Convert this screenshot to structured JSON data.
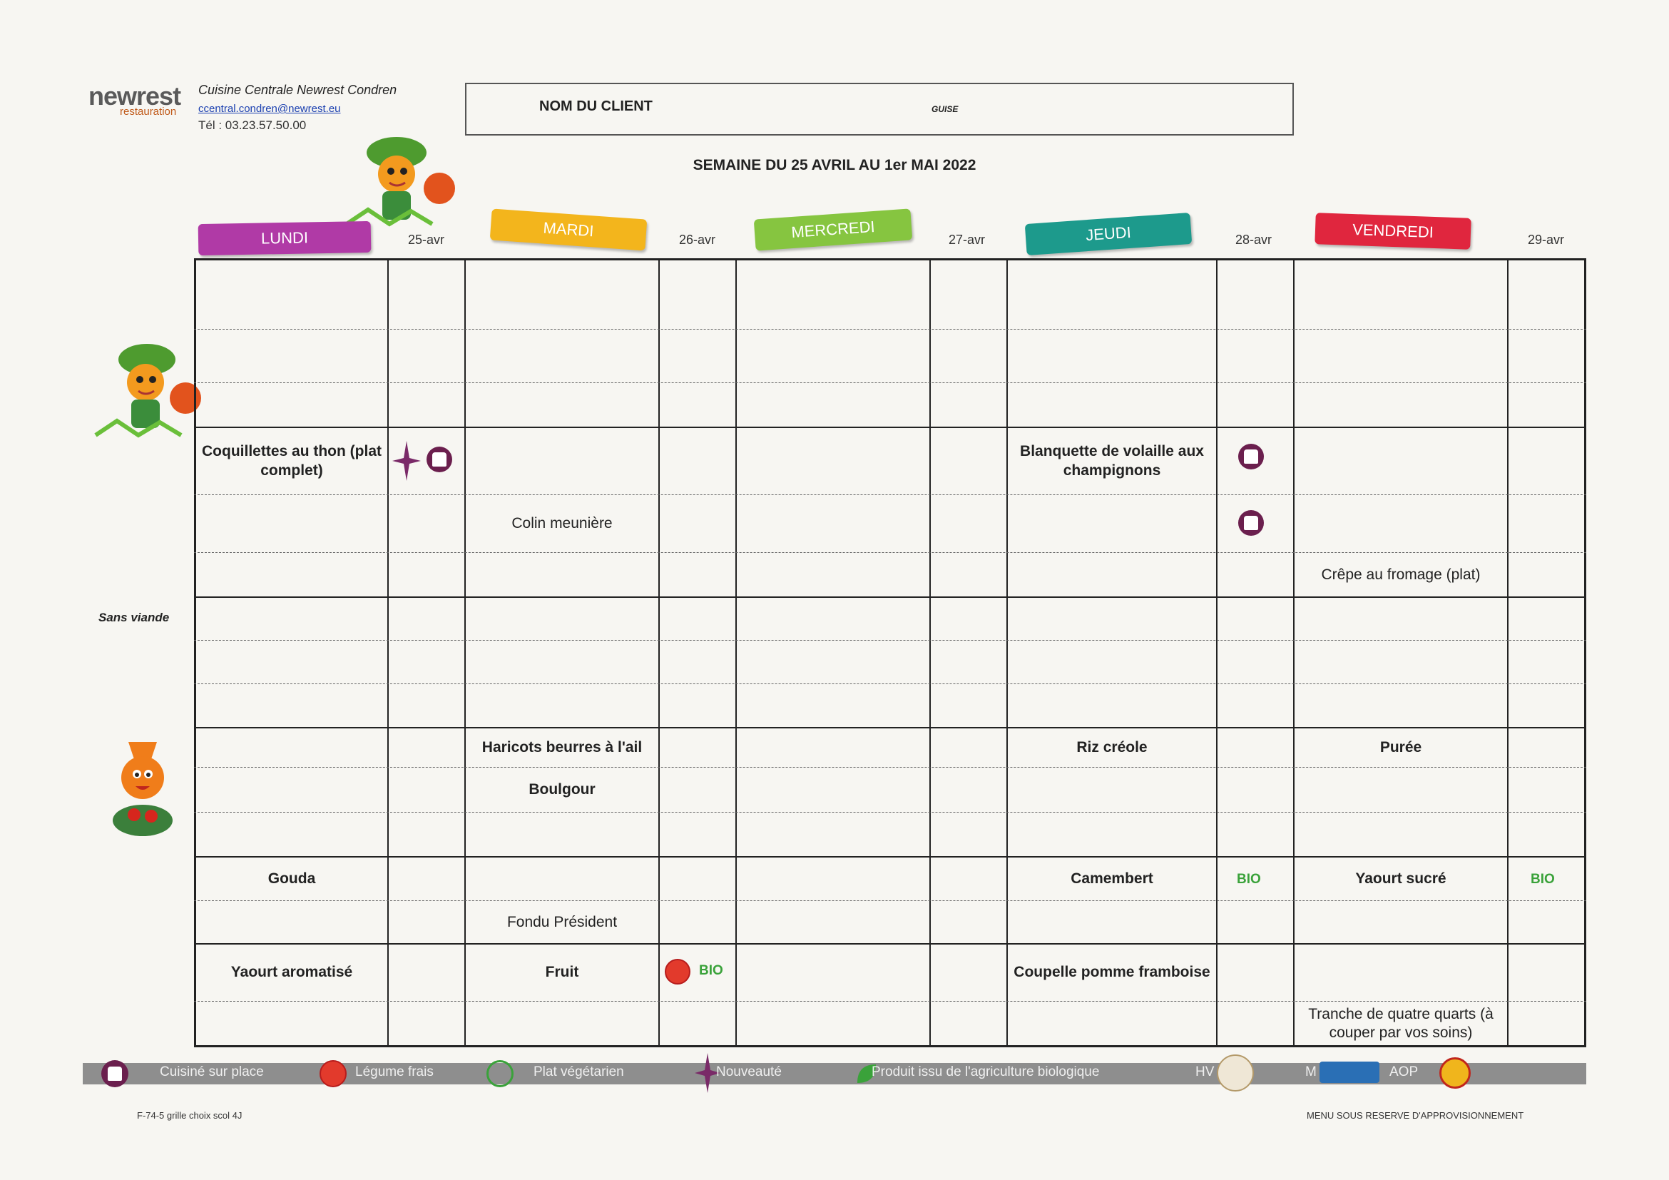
{
  "header": {
    "logo": "newrest",
    "logo_sub": "restauration",
    "company": "Cuisine Centrale Newrest Condren",
    "email": "ccentral.condren@newrest.eu",
    "phone": "Tél : 03.23.57.50.00",
    "client_label": "NOM DU CLIENT",
    "client_value": "GUISE",
    "week_title": "SEMAINE DU 25 AVRIL AU 1er MAI 2022"
  },
  "days": [
    {
      "name": "LUNDI",
      "date": "25-avr",
      "color": "#b03aa6"
    },
    {
      "name": "MARDI",
      "date": "26-avr",
      "color": "#f3b51c"
    },
    {
      "name": "MERCREDI",
      "date": "27-avr",
      "color": "#86c540"
    },
    {
      "name": "JEUDI",
      "date": "28-avr",
      "color": "#1d9a8c"
    },
    {
      "name": "VENDREDI",
      "date": "29-avr",
      "color": "#e0263e"
    }
  ],
  "side_labels": {
    "sans_viande": "Sans viande"
  },
  "menu": {
    "lundi_main": "Coquillettes au thon (plat complet)",
    "mardi_fish": "Colin meunière",
    "jeudi_main": "Blanquette de volaille aux champignons",
    "vendredi_plat": "Crêpe au fromage (plat)",
    "mardi_side1": "Haricots beurres à l'ail",
    "mardi_side2": "Boulgour",
    "jeudi_side": "Riz créole",
    "vendredi_side": "Purée",
    "lundi_cheese": "Gouda",
    "mardi_cheese": "Fondu Président",
    "jeudi_cheese": "Camembert",
    "vendredi_cheese": "Yaourt sucré",
    "lundi_dessert": "Yaourt aromatisé",
    "mardi_dessert": "Fruit",
    "jeudi_dessert": "Coupelle pomme framboise",
    "vendredi_dessert": "Tranche de quatre quarts (à couper par vos soins)"
  },
  "badges": {
    "bio": "BIO"
  },
  "legend": {
    "cuisine": "Cuisiné sur place",
    "legume": "Légume frais",
    "vegetarien": "Plat végétarien",
    "nouveaute": "Nouveauté",
    "bio": "Produit issu de l'agriculture biologique",
    "hv": "HV",
    "m": "M",
    "aop": "AOP"
  },
  "footer": {
    "left": "F-74-5 grille choix scol 4J",
    "right": "MENU SOUS RESERVE D'APPROVISIONNEMENT"
  }
}
